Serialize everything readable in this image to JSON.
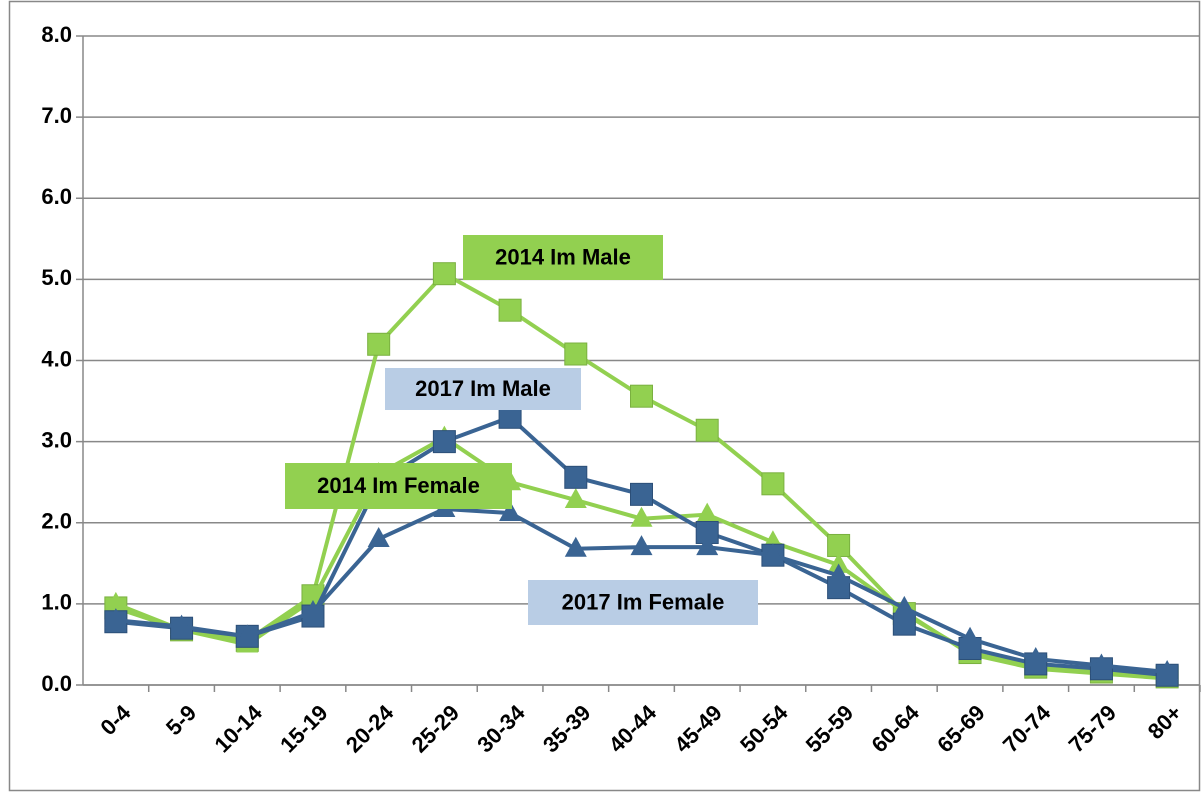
{
  "chart_data": {
    "type": "line",
    "categories": [
      "0-4",
      "5-9",
      "10-14",
      "15-19",
      "20-24",
      "25-29",
      "30-34",
      "35-39",
      "40-44",
      "45-49",
      "50-54",
      "55-59",
      "60-64",
      "65-69",
      "70-74",
      "75-79",
      "80+"
    ],
    "series": [
      {
        "name": "2014 Im Male",
        "color": "#92d050",
        "marker": "square",
        "values": [
          0.95,
          0.68,
          0.55,
          1.1,
          4.2,
          5.07,
          4.62,
          4.08,
          3.56,
          3.14,
          2.48,
          1.72,
          0.88,
          0.4,
          0.22,
          0.16,
          0.1
        ]
      },
      {
        "name": "2014 Im Female",
        "color": "#92d050",
        "marker": "triangle",
        "values": [
          1.0,
          0.68,
          0.5,
          1.05,
          2.6,
          3.05,
          2.5,
          2.28,
          2.05,
          2.1,
          1.76,
          1.48,
          0.9,
          0.38,
          0.2,
          0.14,
          0.08
        ]
      },
      {
        "name": "2017 Im Male",
        "color": "#3a6493",
        "marker": "square",
        "values": [
          0.78,
          0.7,
          0.6,
          0.85,
          2.5,
          3.0,
          3.3,
          2.56,
          2.35,
          1.88,
          1.6,
          1.2,
          0.75,
          0.45,
          0.26,
          0.2,
          0.12
        ]
      },
      {
        "name": "2017 Im Female",
        "color": "#3a6493",
        "marker": "triangle",
        "values": [
          0.8,
          0.72,
          0.6,
          0.9,
          1.8,
          2.17,
          2.12,
          1.68,
          1.7,
          1.7,
          1.6,
          1.35,
          0.95,
          0.57,
          0.32,
          0.24,
          0.16
        ]
      }
    ],
    "ylim": [
      0,
      8
    ],
    "yticks": [
      {
        "value": 0,
        "label": "0.0"
      },
      {
        "value": 1,
        "label": "1.0"
      },
      {
        "value": 2,
        "label": "2.0"
      },
      {
        "value": 3,
        "label": "3.0"
      },
      {
        "value": 4,
        "label": "4.0"
      },
      {
        "value": 5,
        "label": "5.0"
      },
      {
        "value": 6,
        "label": "6.0"
      },
      {
        "value": 7,
        "label": "7.0"
      },
      {
        "value": 8,
        "label": "8.0"
      }
    ],
    "grid": true
  }
}
